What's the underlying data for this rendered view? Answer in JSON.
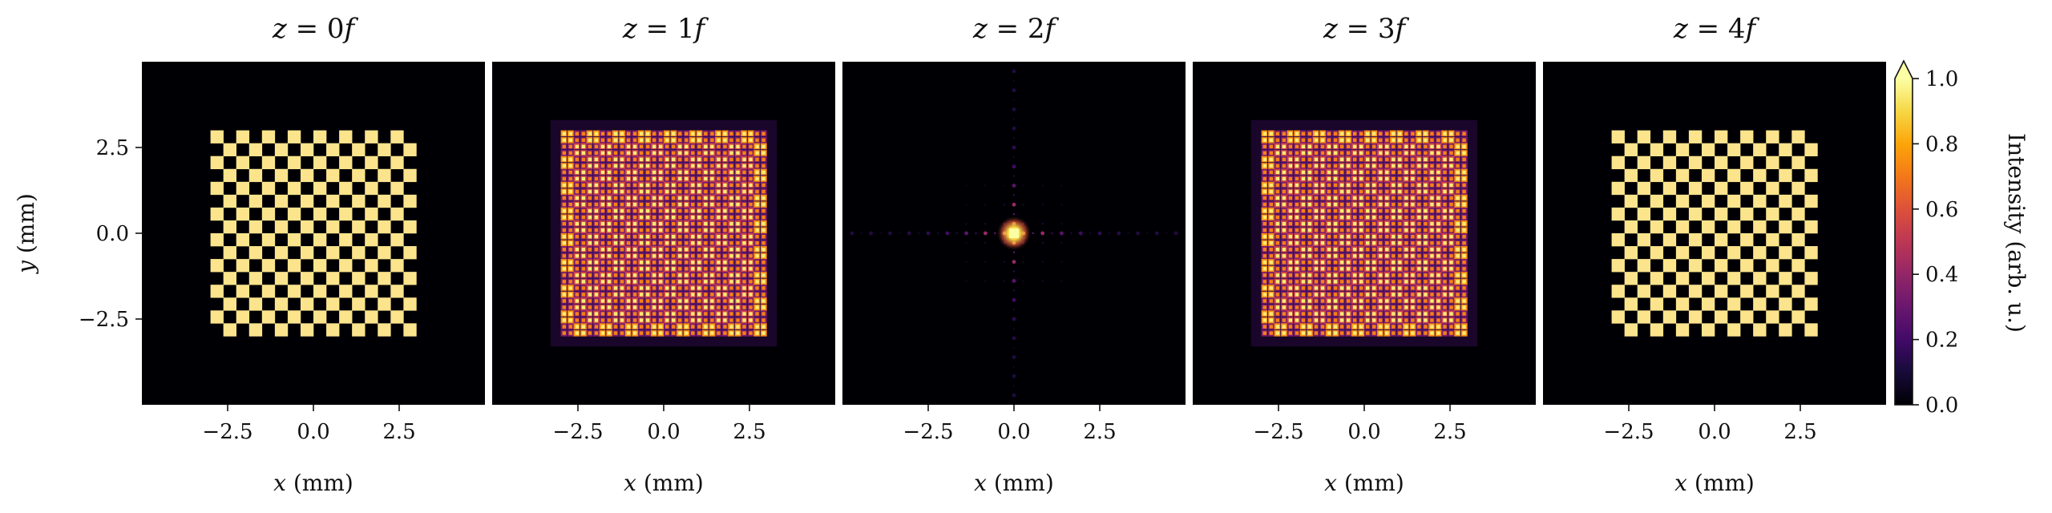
{
  "chart_data": {
    "type": "heatmap",
    "colormap": "inferno",
    "panels": [
      {
        "title_var": "z",
        "title_eq": " = ",
        "title_val": "0",
        "title_unit": "f",
        "pattern": "checkerboard"
      },
      {
        "title_var": "z",
        "title_eq": " = ",
        "title_val": "1",
        "title_unit": "f",
        "pattern": "talbot-diffraction"
      },
      {
        "title_var": "z",
        "title_eq": " = ",
        "title_val": "2",
        "title_unit": "f",
        "pattern": "fourier-spectrum"
      },
      {
        "title_var": "z",
        "title_eq": " = ",
        "title_val": "3",
        "title_unit": "f",
        "pattern": "talbot-diffraction"
      },
      {
        "title_var": "z",
        "title_eq": " = ",
        "title_val": "4",
        "title_unit": "f",
        "pattern": "checkerboard"
      }
    ],
    "x_axis": {
      "var": "x",
      "unit": " (mm)",
      "ticks": [
        -2.5,
        0.0,
        2.5
      ],
      "tick_labels": [
        "−2.5",
        "0.0",
        "2.5"
      ],
      "range": [
        -5,
        5
      ]
    },
    "y_axis": {
      "var": "y",
      "unit": " (mm)",
      "ticks": [
        2.5,
        0.0,
        -2.5
      ],
      "tick_labels": [
        "2.5",
        "0.0",
        "−2.5"
      ],
      "range": [
        -5,
        5
      ]
    },
    "checkerboard": {
      "extent": [
        -3,
        3
      ],
      "squares_per_side": 16
    },
    "colorbar": {
      "label": "Intensity (arb. u.)",
      "ticks": [
        0.0,
        0.2,
        0.4,
        0.6,
        0.8,
        1.0
      ],
      "tick_labels": [
        "0.0",
        "0.2",
        "0.4",
        "0.6",
        "0.8",
        "1.0"
      ],
      "range": [
        0,
        1
      ],
      "extend": "max"
    }
  }
}
